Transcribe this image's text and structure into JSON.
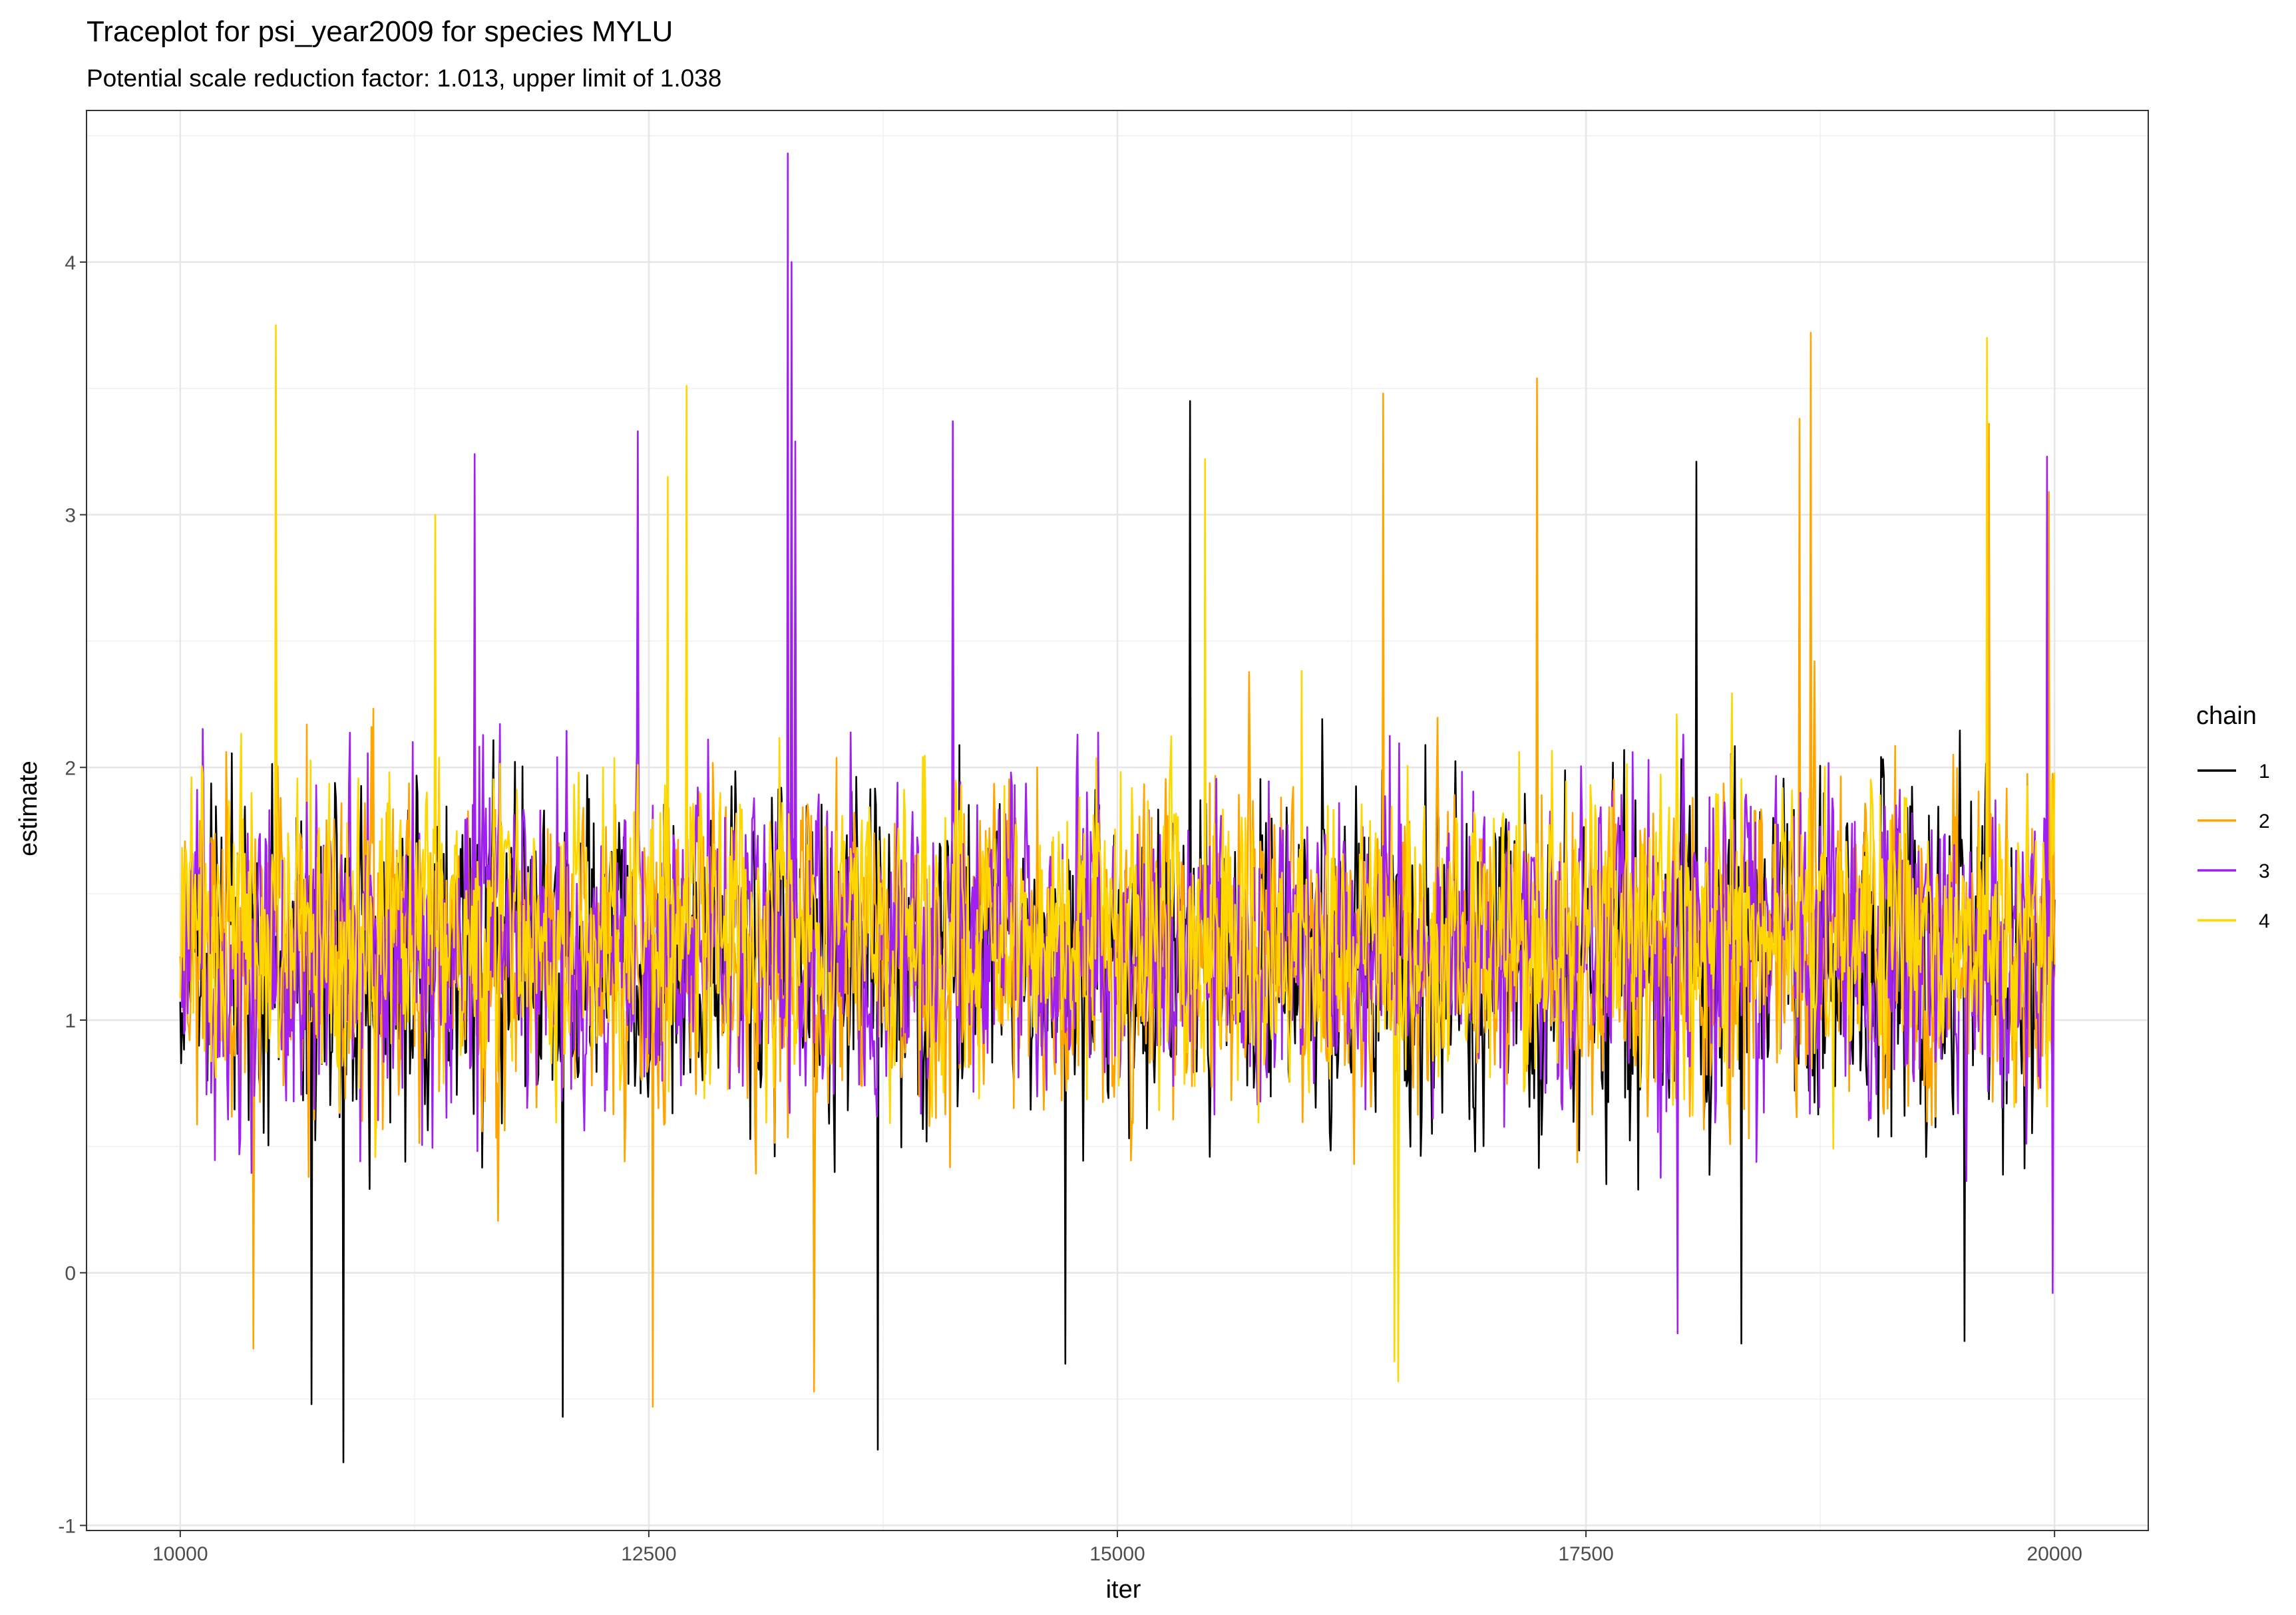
{
  "chart_data": {
    "type": "line",
    "title": "Traceplot for psi_year2009 for species MYLU",
    "subtitle": "Potential scale reduction factor: 1.013, upper limit of 1.038",
    "xlabel": "iter",
    "ylabel": "estimate",
    "xlim": [
      9500,
      20500
    ],
    "ylim": [
      -1.02,
      4.6
    ],
    "x_ticks": [
      10000,
      12500,
      15000,
      17500,
      20000
    ],
    "x_tick_labels": [
      "10000",
      "12500",
      "15000",
      "17500",
      "20000"
    ],
    "y_ticks": [
      -1,
      0,
      1,
      2,
      3,
      4
    ],
    "y_tick_labels": [
      "-1",
      "0",
      "1",
      "2",
      "3",
      "4"
    ],
    "grid": true,
    "legend": {
      "title": "chain",
      "position": "right"
    },
    "iterations": {
      "start": 10000,
      "end": 20000
    },
    "series": [
      {
        "name": "1",
        "color": "#000000",
        "center": 1.25,
        "spread": 0.62,
        "max": 3.45,
        "min": -0.75,
        "spikes": [
          [
            10870,
            -0.75
          ],
          [
            13720,
            -0.7
          ],
          [
            12040,
            -0.57
          ],
          [
            15390,
            3.45
          ],
          [
            18090,
            3.21
          ],
          [
            19520,
            -0.27
          ],
          [
            18330,
            -0.28
          ],
          [
            14720,
            -0.36
          ],
          [
            10700,
            -0.52
          ]
        ]
      },
      {
        "name": "2",
        "color": "#FFA500",
        "center": 1.25,
        "spread": 0.58,
        "max": 3.72,
        "min": -0.53,
        "spikes": [
          [
            18700,
            3.72
          ],
          [
            17240,
            3.54
          ],
          [
            16420,
            3.48
          ],
          [
            12520,
            -0.53
          ],
          [
            13380,
            -0.47
          ],
          [
            19650,
            3.36
          ],
          [
            18640,
            3.38
          ],
          [
            19970,
            3.09
          ],
          [
            10390,
            -0.3
          ]
        ]
      },
      {
        "name": "3",
        "color": "#A020F0",
        "center": 1.3,
        "spread": 0.6,
        "max": 4.43,
        "min": -0.24,
        "spikes": [
          [
            13240,
            4.43
          ],
          [
            13260,
            4.0
          ],
          [
            13280,
            3.29
          ],
          [
            14120,
            3.37
          ],
          [
            12440,
            3.33
          ],
          [
            11570,
            3.24
          ],
          [
            19960,
            3.23
          ],
          [
            17990,
            -0.24
          ],
          [
            19990,
            -0.08
          ]
        ]
      },
      {
        "name": "4",
        "color": "#FFD700",
        "center": 1.35,
        "spread": 0.55,
        "max": 3.75,
        "min": -0.43,
        "spikes": [
          [
            10510,
            3.75
          ],
          [
            19640,
            3.7
          ],
          [
            12700,
            3.51
          ],
          [
            15470,
            3.22
          ],
          [
            16500,
            -0.43
          ],
          [
            16480,
            -0.35
          ],
          [
            11360,
            3.0
          ],
          [
            12600,
            3.15
          ]
        ]
      }
    ]
  }
}
